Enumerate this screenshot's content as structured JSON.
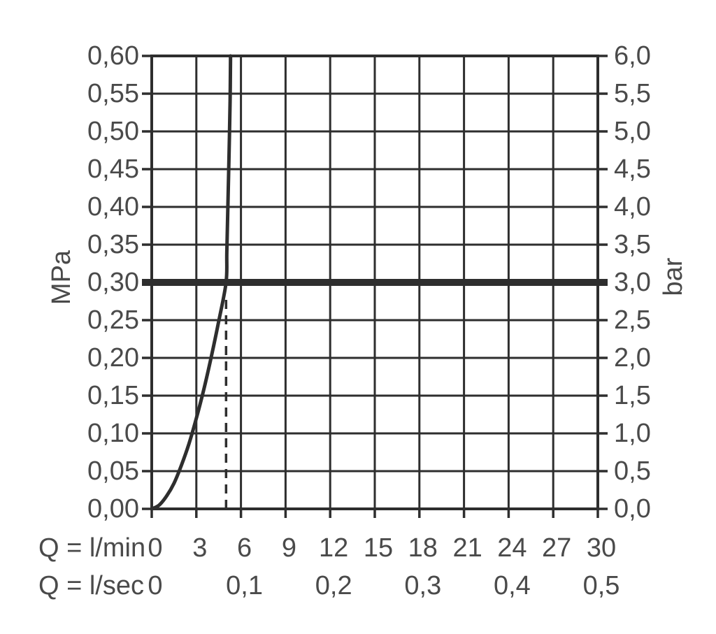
{
  "chart_data": {
    "type": "line",
    "title": "",
    "grid": {
      "x_step_lmin": 3,
      "y_step_mpa": 0.05,
      "grid_on": true
    },
    "x_axis": {
      "row1_label": "Q = l/min",
      "row2_label": "Q = l/sec",
      "range_lmin": [
        0,
        30
      ],
      "row1_ticks": [
        {
          "label": "0",
          "lmin": 0
        },
        {
          "label": "3",
          "lmin": 3
        },
        {
          "label": "6",
          "lmin": 6
        },
        {
          "label": "9",
          "lmin": 9
        },
        {
          "label": "12",
          "lmin": 12
        },
        {
          "label": "15",
          "lmin": 15
        },
        {
          "label": "18",
          "lmin": 18
        },
        {
          "label": "21",
          "lmin": 21
        },
        {
          "label": "24",
          "lmin": 24
        },
        {
          "label": "27",
          "lmin": 27
        },
        {
          "label": "30",
          "lmin": 30
        }
      ],
      "row2_ticks": [
        {
          "label": "0",
          "lmin": 0
        },
        {
          "label": "0,1",
          "lmin": 6
        },
        {
          "label": "0,2",
          "lmin": 12
        },
        {
          "label": "0,3",
          "lmin": 18
        },
        {
          "label": "0,4",
          "lmin": 24
        },
        {
          "label": "0,5",
          "lmin": 30
        }
      ]
    },
    "y_axis_left": {
      "unit": "MPa",
      "range_mpa": [
        0,
        0.6
      ],
      "ticks": [
        {
          "label": "0,60",
          "mpa": 0.6
        },
        {
          "label": "0,55",
          "mpa": 0.55
        },
        {
          "label": "0,50",
          "mpa": 0.5
        },
        {
          "label": "0,45",
          "mpa": 0.45
        },
        {
          "label": "0,40",
          "mpa": 0.4
        },
        {
          "label": "0,35",
          "mpa": 0.35
        },
        {
          "label": "0,30",
          "mpa": 0.3
        },
        {
          "label": "0,25",
          "mpa": 0.25
        },
        {
          "label": "0,20",
          "mpa": 0.2
        },
        {
          "label": "0,15",
          "mpa": 0.15
        },
        {
          "label": "0,10",
          "mpa": 0.1
        },
        {
          "label": "0,05",
          "mpa": 0.05
        },
        {
          "label": "0,00",
          "mpa": 0.0
        }
      ]
    },
    "y_axis_right": {
      "unit": "bar",
      "ticks": [
        {
          "label": "6,0",
          "bar": 6.0
        },
        {
          "label": "5,5",
          "bar": 5.5
        },
        {
          "label": "5,0",
          "bar": 5.0
        },
        {
          "label": "4,5",
          "bar": 4.5
        },
        {
          "label": "4,0",
          "bar": 4.0
        },
        {
          "label": "3,5",
          "bar": 3.5
        },
        {
          "label": "3,0",
          "bar": 3.0
        },
        {
          "label": "2,5",
          "bar": 2.5
        },
        {
          "label": "2,0",
          "bar": 2.0
        },
        {
          "label": "1,5",
          "bar": 1.5
        },
        {
          "label": "1,0",
          "bar": 1.0
        },
        {
          "label": "0,5",
          "bar": 0.5
        },
        {
          "label": "0,0",
          "bar": 0.0
        }
      ]
    },
    "series": [
      {
        "name": "pressure-loss-curve",
        "points_lmin_mpa": [
          [
            0,
            0.0
          ],
          [
            0.5,
            0.005
          ],
          [
            1,
            0.017
          ],
          [
            1.5,
            0.034
          ],
          [
            2,
            0.058
          ],
          [
            2.5,
            0.086
          ],
          [
            3,
            0.12
          ],
          [
            3.5,
            0.158
          ],
          [
            4,
            0.201
          ],
          [
            4.5,
            0.248
          ],
          [
            5,
            0.3
          ],
          [
            5.05,
            0.34
          ],
          [
            5.12,
            0.4
          ],
          [
            5.2,
            0.47
          ],
          [
            5.27,
            0.54
          ],
          [
            5.3,
            0.6
          ]
        ]
      }
    ],
    "reference_line": {
      "mpa": 0.3,
      "bar": 3.0
    },
    "dashed_marker": {
      "lmin": 5.0,
      "to_mpa": 0.285
    },
    "colors": {
      "line": "#2e2e2e",
      "text": "#4a4a4a",
      "background": "#ffffff"
    }
  }
}
